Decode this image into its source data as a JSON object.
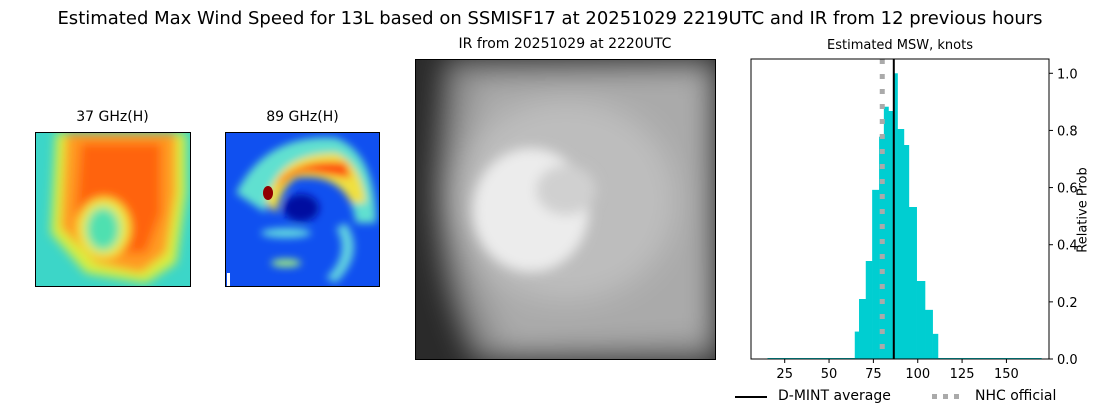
{
  "suptitle": "Estimated Max Wind Speed for 13L based on SSMISF17 at 20251029 2219UTC and IR from 12 previous hours",
  "panels": {
    "mw37_title": "37 GHz(H)",
    "mw89_title": "89 GHz(H)",
    "ir_title": "IR from 20251029 at 2220UTC"
  },
  "chart_data": {
    "type": "bar",
    "title": "Estimated MSW, knots",
    "xlabel": "",
    "ylabel": "Relative Prob",
    "xlim": [
      6,
      174
    ],
    "ylim": [
      0,
      1.05
    ],
    "xticks": [
      25,
      50,
      75,
      100,
      125,
      150
    ],
    "yticks": [
      0.0,
      0.2,
      0.4,
      0.6,
      0.8,
      1.0
    ],
    "ytick_labels": [
      "0.0",
      "0.2",
      "0.4",
      "0.6",
      "0.8",
      "1.0"
    ],
    "y_axis_side": "right",
    "bar_color": "#00ced1",
    "bins": [
      {
        "x0": 15.3,
        "x1": 64.5,
        "value": 0.003
      },
      {
        "x0": 64.5,
        "x1": 66.9,
        "value": 0.096
      },
      {
        "x0": 66.9,
        "x1": 70.7,
        "value": 0.21
      },
      {
        "x0": 70.7,
        "x1": 74.3,
        "value": 0.343
      },
      {
        "x0": 74.3,
        "x1": 78.2,
        "value": 0.592
      },
      {
        "x0": 78.2,
        "x1": 80.9,
        "value": 0.778
      },
      {
        "x0": 80.9,
        "x1": 83.5,
        "value": 0.883
      },
      {
        "x0": 83.5,
        "x1": 86.3,
        "value": 0.868
      },
      {
        "x0": 86.3,
        "x1": 88.6,
        "value": 1.0
      },
      {
        "x0": 88.6,
        "x1": 92.2,
        "value": 0.805
      },
      {
        "x0": 92.2,
        "x1": 95.0,
        "value": 0.749
      },
      {
        "x0": 95.0,
        "x1": 99.4,
        "value": 0.532
      },
      {
        "x0": 99.4,
        "x1": 104.1,
        "value": 0.273
      },
      {
        "x0": 104.1,
        "x1": 108.4,
        "value": 0.172
      },
      {
        "x0": 108.4,
        "x1": 111.4,
        "value": 0.088
      },
      {
        "x0": 111.4,
        "x1": 169.7,
        "value": 0.003
      }
    ],
    "lines": [
      {
        "name": "D-MINT average",
        "x": 86.5,
        "color": "#000000",
        "style": "solid"
      },
      {
        "name": "NHC official",
        "x": 80,
        "color": "#aaaaaa",
        "style": "dotted"
      }
    ],
    "legend_placement": "bottom"
  }
}
